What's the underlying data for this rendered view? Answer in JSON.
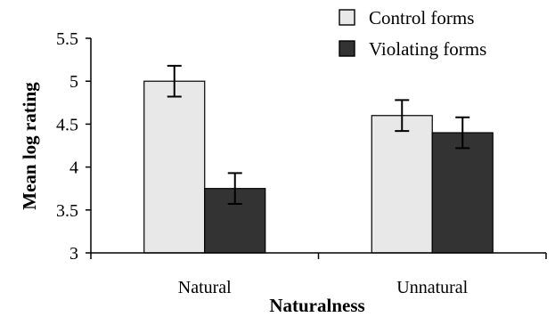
{
  "chart_data": {
    "type": "bar",
    "title": "",
    "xlabel": "Naturalness",
    "ylabel": "Mean log rating",
    "categories": [
      "Natural",
      "Unnatural"
    ],
    "ylim": [
      3,
      5.5
    ],
    "yticks": [
      "3",
      "3.5",
      "4",
      "4.5",
      "5",
      "5.5"
    ],
    "grid": false,
    "legend_position": "top-right",
    "series": [
      {
        "name": "Control forms",
        "values": [
          5.0,
          4.6
        ],
        "error": [
          0.18,
          0.18
        ],
        "color": "#e8e8e8"
      },
      {
        "name": "Violating forms",
        "values": [
          3.75,
          4.4
        ],
        "error": [
          0.18,
          0.18
        ],
        "color": "#333333"
      }
    ]
  }
}
